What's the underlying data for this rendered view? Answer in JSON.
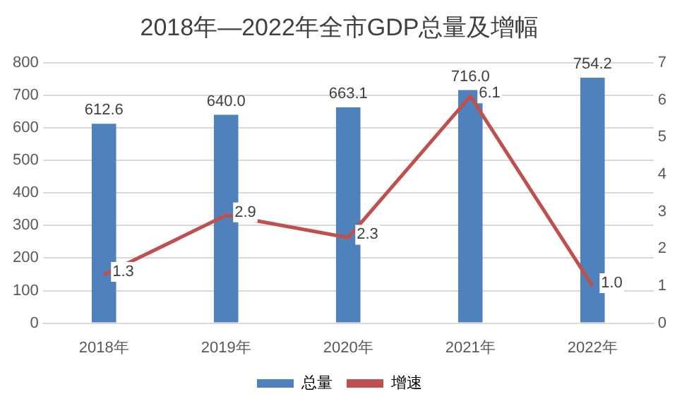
{
  "chart_data": {
    "type": "bar",
    "title": "2018年—2022年全市GDP总量及增幅",
    "categories": [
      "2018年",
      "2019年",
      "2020年",
      "2021年",
      "2022年"
    ],
    "series": [
      {
        "name": "总量",
        "color": "#4f81bd",
        "values": [
          612.6,
          640.0,
          663.1,
          716.0,
          754.2
        ],
        "value_labels": [
          "612.6",
          "640.0",
          "663.1",
          "716.0",
          "754.2"
        ]
      },
      {
        "name": "增速",
        "type": "line",
        "axis": "y2",
        "color": "#c0504d",
        "values": [
          1.3,
          2.9,
          2.3,
          6.1,
          1.0
        ],
        "value_labels": [
          "1.3",
          "2.9",
          "2.3",
          "6.1",
          "1.0"
        ]
      }
    ],
    "ylim": [
      0,
      800
    ],
    "yticks": [
      0,
      100,
      200,
      300,
      400,
      500,
      600,
      700,
      800
    ],
    "y2lim": [
      0,
      7
    ],
    "y2ticks": [
      0,
      1,
      2,
      3,
      4,
      5,
      6,
      7
    ],
    "grid": "y",
    "legend": "bottom",
    "marker": "none",
    "line_style": "solid"
  }
}
